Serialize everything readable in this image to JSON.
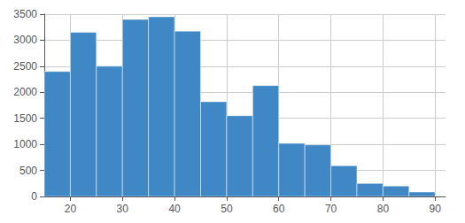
{
  "chart_data": {
    "type": "histogram",
    "bins": [
      15,
      20,
      25,
      30,
      35,
      40,
      45,
      50,
      55,
      60,
      65,
      70,
      75,
      80,
      85,
      90
    ],
    "values": [
      2400,
      3150,
      2500,
      3400,
      3450,
      3175,
      1820,
      1550,
      2130,
      1020,
      990,
      590,
      250,
      200,
      85
    ],
    "color": "#3f88c5",
    "xlim": [
      15,
      92
    ],
    "ylim": [
      0,
      3500
    ],
    "xticks": [
      20,
      30,
      40,
      50,
      60,
      70,
      80,
      90
    ],
    "yticks": [
      0,
      500,
      1000,
      1500,
      2000,
      2500,
      3000,
      3500
    ],
    "grid": true
  }
}
